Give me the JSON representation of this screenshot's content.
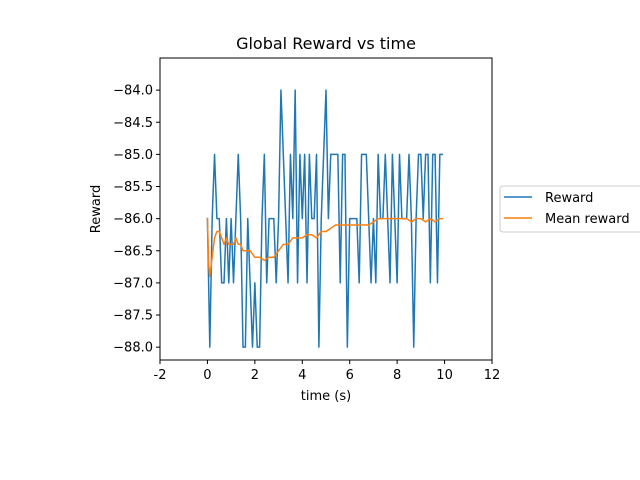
{
  "chart_data": {
    "type": "line",
    "title": "Global Reward vs time",
    "xlabel": "time (s)",
    "ylabel": "Reward",
    "xlim": [
      -2,
      12
    ],
    "ylim": [
      -88.2,
      -83.5
    ],
    "xticks": [
      -2,
      0,
      2,
      4,
      6,
      8,
      10,
      12
    ],
    "xtick_labels": [
      "-2",
      "0",
      "2",
      "4",
      "6",
      "8",
      "10",
      "12"
    ],
    "yticks": [
      -88.0,
      -87.5,
      -87.0,
      -86.5,
      -86.0,
      -85.5,
      -85.0,
      -84.5,
      -84.0
    ],
    "ytick_labels": [
      "−88.0",
      "−87.5",
      "−87.0",
      "−86.5",
      "−86.0",
      "−85.5",
      "−85.0",
      "−84.5",
      "−84.0"
    ],
    "grid": false,
    "legend": {
      "placement": "outside-right"
    },
    "series": [
      {
        "name": "Reward",
        "color": "#1f77b4",
        "x": [
          0.0,
          0.1,
          0.2,
          0.3,
          0.4,
          0.5,
          0.6,
          0.7,
          0.8,
          0.9,
          1.0,
          1.1,
          1.2,
          1.3,
          1.4,
          1.5,
          1.6,
          1.7,
          1.8,
          1.9,
          2.0,
          2.1,
          2.2,
          2.3,
          2.4,
          2.5,
          2.6,
          2.7,
          2.8,
          2.9,
          3.0,
          3.1,
          3.2,
          3.3,
          3.4,
          3.5,
          3.6,
          3.7,
          3.8,
          3.9,
          4.0,
          4.1,
          4.2,
          4.3,
          4.4,
          4.5,
          4.6,
          4.7,
          4.8,
          4.9,
          5.0,
          5.1,
          5.2,
          5.3,
          5.4,
          5.5,
          5.6,
          5.7,
          5.8,
          5.9,
          6.0,
          6.1,
          6.2,
          6.3,
          6.4,
          6.5,
          6.6,
          6.7,
          6.8,
          6.9,
          7.0,
          7.1,
          7.2,
          7.3,
          7.4,
          7.5,
          7.6,
          7.7,
          7.8,
          7.9,
          8.0,
          8.1,
          8.2,
          8.3,
          8.4,
          8.5,
          8.6,
          8.7,
          8.8,
          8.9,
          9.0,
          9.1,
          9.2,
          9.3,
          9.4,
          9.5,
          9.6,
          9.7,
          9.8,
          9.9
        ],
        "values": [
          -86,
          -88,
          -86,
          -85,
          -86,
          -86,
          -87,
          -87,
          -86,
          -87,
          -86,
          -87,
          -86,
          -85,
          -86,
          -88,
          -88,
          -86,
          -87,
          -88,
          -87,
          -88,
          -88,
          -86,
          -85,
          -87,
          -86,
          -86,
          -86,
          -87,
          -86,
          -84,
          -85,
          -86,
          -87,
          -85,
          -86,
          -84,
          -87,
          -85,
          -86,
          -85,
          -87,
          -85,
          -86,
          -86,
          -85,
          -88,
          -86,
          -85,
          -84,
          -86,
          -85,
          -85,
          -85,
          -85,
          -87,
          -85,
          -85,
          -88,
          -86,
          -86,
          -86,
          -86,
          -87,
          -85,
          -85,
          -85,
          -86,
          -87,
          -86,
          -87,
          -85,
          -86,
          -86,
          -85,
          -86,
          -87,
          -85,
          -86,
          -87,
          -85,
          -86,
          -86,
          -86,
          -85,
          -86,
          -88,
          -86,
          -85,
          -85,
          -86,
          -85,
          -85,
          -87,
          -85,
          -85,
          -87,
          -85,
          -85
        ]
      },
      {
        "name": "Mean reward",
        "color": "#ff7f0e",
        "x": [
          0.0,
          0.05,
          0.1,
          0.2,
          0.3,
          0.4,
          0.5,
          0.6,
          0.7,
          0.8,
          0.9,
          1.0,
          1.1,
          1.2,
          1.3,
          1.4,
          1.5,
          1.6,
          1.8,
          2.0,
          2.2,
          2.4,
          2.6,
          2.8,
          3.0,
          3.2,
          3.4,
          3.6,
          3.8,
          4.0,
          4.2,
          4.4,
          4.6,
          4.8,
          5.0,
          5.2,
          5.4,
          5.6,
          5.8,
          6.0,
          6.2,
          6.4,
          6.6,
          6.8,
          7.0,
          7.2,
          7.4,
          7.6,
          7.8,
          8.0,
          8.2,
          8.4,
          8.6,
          8.8,
          9.0,
          9.2,
          9.4,
          9.6,
          9.8,
          9.9
        ],
        "values": [
          -86.0,
          -86.7,
          -86.9,
          -86.6,
          -86.3,
          -86.2,
          -86.2,
          -86.3,
          -86.4,
          -86.3,
          -86.4,
          -86.4,
          -86.4,
          -86.3,
          -86.4,
          -86.4,
          -86.5,
          -86.5,
          -86.5,
          -86.6,
          -86.6,
          -86.65,
          -86.6,
          -86.6,
          -86.5,
          -86.4,
          -86.4,
          -86.3,
          -86.3,
          -86.3,
          -86.25,
          -86.25,
          -86.3,
          -86.2,
          -86.2,
          -86.15,
          -86.1,
          -86.1,
          -86.1,
          -86.1,
          -86.1,
          -86.1,
          -86.1,
          -86.1,
          -86.05,
          -86.0,
          -86.0,
          -86.0,
          -86.0,
          -86.0,
          -86.0,
          -86.0,
          -86.05,
          -86.0,
          -86.0,
          -86.05,
          -86.0,
          -86.05,
          -86.0,
          -86.0
        ]
      }
    ]
  }
}
